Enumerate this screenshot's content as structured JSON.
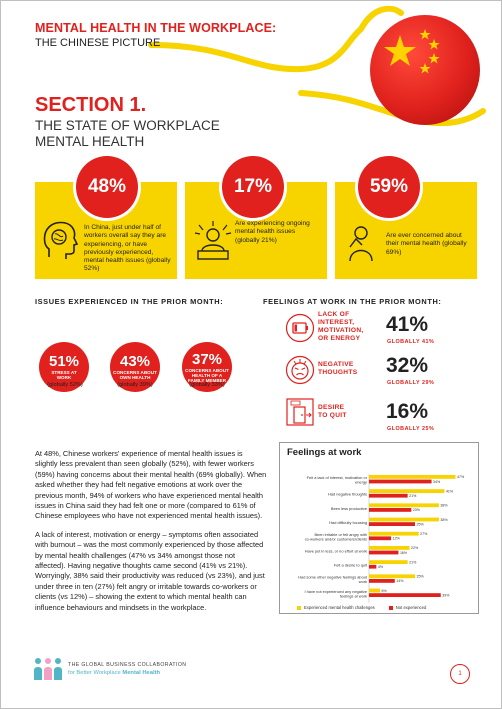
{
  "header": {
    "title": "MENTAL HEALTH IN THE WORKPLACE:",
    "subtitle": "THE CHINESE PICTURE"
  },
  "section": {
    "number": "SECTION 1.",
    "title_line1": "THE STATE OF WORKPLACE",
    "title_line2": "MENTAL HEALTH"
  },
  "stats": [
    {
      "value": "48%",
      "text": "In China, just under half of workers overall say they are experiencing, or have previously experienced, mental health issues (globally 52%)",
      "icon": "head-brain-icon"
    },
    {
      "value": "17%",
      "text": "Are experiencing ongoing mental health issues (globally 21%)",
      "icon": "stressed-worker-icon"
    },
    {
      "value": "59%",
      "text": "Are ever concerned about their mental health (globally 69%)",
      "icon": "worried-person-icon"
    }
  ],
  "issues": {
    "heading": "ISSUES EXPERIENCED IN THE PRIOR MONTH:",
    "items": [
      {
        "value": "51%",
        "label_line1": "STRESS AT",
        "label_line2": "WORK",
        "label_line3": "",
        "global": "(globally 52%)"
      },
      {
        "value": "43%",
        "label_line1": "CONCERNS ABOUT",
        "label_line2": "OWN HEALTH",
        "label_line3": "",
        "global": "(globally 39%)"
      },
      {
        "value": "37%",
        "label_line1": "CONCERNS ABOUT",
        "label_line2": "HEALTH OF A",
        "label_line3": "FAMILY MEMBER",
        "global": "(globally 33%)"
      }
    ]
  },
  "feelings": {
    "heading": "FEELINGS AT WORK IN THE PRIOR MONTH:",
    "items": [
      {
        "label_line1": "LACK OF",
        "label_line2": "INTEREST,",
        "label_line3": "MOTIVATION,",
        "label_line4": "OR ENERGY",
        "value": "41%",
        "global": "GLOBALLY 41%",
        "icon": "empty-battery-icon"
      },
      {
        "label_line1": "NEGATIVE",
        "label_line2": "THOUGHTS",
        "label_line3": "",
        "label_line4": "",
        "value": "32%",
        "global": "GLOBALLY 29%",
        "icon": "angry-face-icon"
      },
      {
        "label_line1": "DESIRE",
        "label_line2": "TO QUIT",
        "label_line3": "",
        "label_line4": "",
        "value": "16%",
        "global": "GLOBALLY 25%",
        "icon": "exit-door-icon"
      }
    ]
  },
  "body": {
    "p1": "At 48%, Chinese workers' experience of mental health issues is slightly less prevalent than seen globally (52%), with fewer workers (59%) having concerns about their mental health (69% globally). When asked whether they had felt negative emotions at work over the previous month, 94% of workers who have experienced mental health issues in China said they had felt one or more (compared to 61% of Chinese employees who have not experienced mental health issues).",
    "p2": "A lack of interest, motivation or energy – symptoms often associated with burnout – was the most commonly experienced by those affected by mental health challenges (47% vs 34% amongst those not affected). Having negative thoughts came second (41% vs 21%). Worryingly, 38% said their productivity was reduced (vs 23%), and just under three in ten (27%) felt angry or irritable towards co-workers or clients (vs 12%) – showing the extent to which mental health can influence behaviours and mindsets in the workplace."
  },
  "chart_data": {
    "type": "bar",
    "orientation": "horizontal",
    "title": "Feelings at work",
    "categories": [
      "Felt a lack of interest, motivation or energy",
      "Had negative thoughts",
      "Been less productive",
      "Had difficulty focusing",
      "Been irritable or felt angry with co-workers and/or customers/clients",
      "Have put in less, or no effort at work",
      "Felt a desire to quit",
      "Had some other negative feelings about work",
      "I have not experienced any negative feelings at work"
    ],
    "series": [
      {
        "name": "Experienced mental health challenges",
        "values": [
          47,
          41,
          38,
          38,
          27,
          22,
          21,
          25,
          6
        ],
        "labels": [
          "47%",
          "41%",
          "38%",
          "38%",
          "27%",
          "22%",
          "21%",
          "25%",
          "6%"
        ],
        "color": "#f7d300"
      },
      {
        "name": "Not experienced",
        "values": [
          34,
          21,
          23,
          25,
          12,
          16,
          4,
          14,
          39
        ],
        "labels": [
          "34%",
          "21%",
          "23%",
          "25%",
          "12%",
          "16%",
          "4%",
          "14%",
          "39%"
        ],
        "color": "#e0211d"
      }
    ],
    "xlim": [
      0,
      50
    ],
    "grid": false,
    "legend": "bottom"
  },
  "footer": {
    "org_line1": "THE GLOBAL BUSINESS COLLABORATION",
    "org_line2a": "for Better Workplace",
    "org_line2b": "Mental Health",
    "page": "1"
  },
  "colors": {
    "accent": "#e0211d",
    "highlight": "#f7d300",
    "teal": "#4fb6c9"
  }
}
